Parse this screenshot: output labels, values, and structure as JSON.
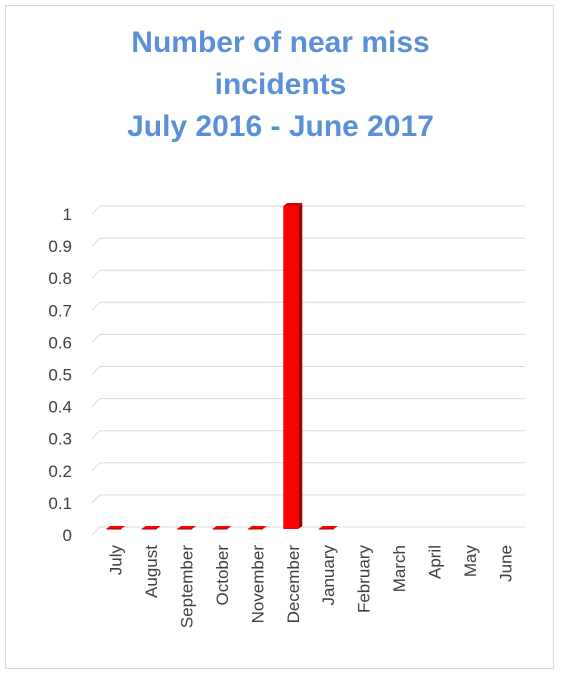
{
  "chart_data": {
    "type": "bar",
    "title_lines": [
      "Number of near miss",
      "incidents",
      "July 2016 - June 2017"
    ],
    "categories": [
      "July",
      "August",
      "September",
      "October",
      "November",
      "December",
      "January",
      "February",
      "March",
      "April",
      "May",
      "June"
    ],
    "values": [
      0,
      0,
      0,
      0,
      0,
      1,
      0,
      null,
      null,
      null,
      null,
      null
    ],
    "ylim": [
      0,
      1
    ],
    "yticks": [
      "0",
      "0.1",
      "0.2",
      "0.3",
      "0.4",
      "0.5",
      "0.6",
      "0.7",
      "0.8",
      "0.9",
      "1"
    ],
    "grid": true,
    "legend": "none",
    "colors": {
      "bar_front": "#ff0000",
      "bar_side": "#a80000",
      "bar_top": "#d40000",
      "title": "#5b8fd6",
      "grid": "#d9d9d9"
    }
  }
}
